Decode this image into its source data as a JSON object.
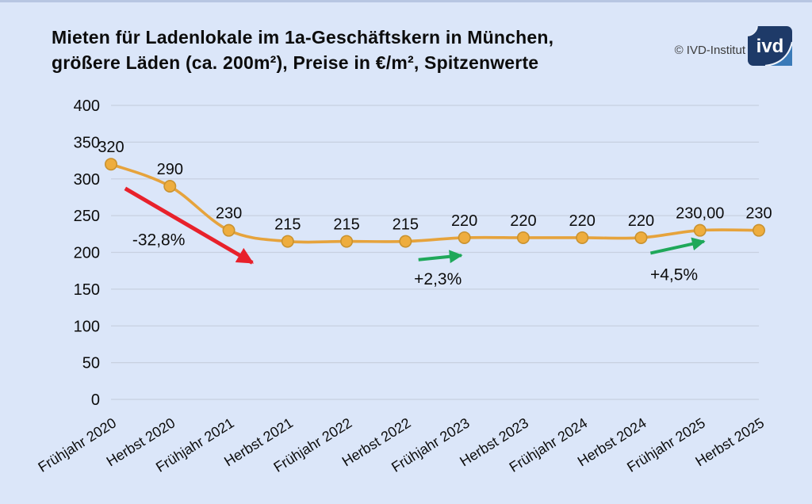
{
  "page": {
    "title_line1": "Mieten für Ladenlokale im 1a-Geschäftskern in München,",
    "title_line2": "größere Läden (ca. 200m²), Preise in €/m², Spitzenwerte",
    "watermark": "© IVD-Institut",
    "logo_text": "ivd"
  },
  "colors": {
    "background": "#dbe6f9",
    "grid": "#c7d0e0",
    "line": "#e6a33c",
    "marker_fill": "#eead3e",
    "marker_stroke": "#c9922f",
    "text": "#0c0c0c",
    "red": "#e8212b",
    "green": "#1fa85a",
    "logo_navy": "#1e3a68",
    "logo_blue": "#3a7ab8"
  },
  "chart_data": {
    "type": "line",
    "title": "Mieten für Ladenlokale im 1a-Geschäftskern in München, größere Läden (ca. 200m²), Preise in €/m², Spitzenwerte",
    "categories": [
      "Frühjahr 2020",
      "Herbst 2020",
      "Frühjahr 2021",
      "Herbst 2021",
      "Frühjahr 2022",
      "Herbst 2022",
      "Frühjahr 2023",
      "Herbst 2023",
      "Frühjahr 2024",
      "Herbst 2024",
      "Frühjahr 2025",
      "Herbst 2025"
    ],
    "values": [
      320,
      290,
      230,
      215,
      215,
      215,
      220,
      220,
      220,
      220,
      230,
      230
    ],
    "point_labels": [
      "320",
      "290",
      "230",
      "215",
      "215",
      "215",
      "220",
      "220",
      "220",
      "220",
      "230,00",
      "230"
    ],
    "xlabel": "",
    "ylabel": "",
    "ylim": [
      0,
      400
    ],
    "yticks": [
      400,
      350,
      300,
      250,
      200,
      150,
      100,
      50,
      0
    ],
    "grid": true,
    "legend": "none",
    "annotations": [
      {
        "text": "-32,8%",
        "color": "#e8212b",
        "stroke_width": 5,
        "arrow_from": [
          0.24,
          287
        ],
        "arrow_to": [
          2.4,
          186
        ],
        "label_at": [
          0.81,
          217
        ]
      },
      {
        "text": "+2,3%",
        "color": "#1fa85a",
        "stroke_width": 4,
        "arrow_from": [
          5.22,
          190
        ],
        "arrow_to": [
          5.95,
          196
        ],
        "label_at": [
          5.55,
          164
        ]
      },
      {
        "text": "+4,5%",
        "color": "#1fa85a",
        "stroke_width": 4,
        "arrow_from": [
          9.16,
          199
        ],
        "arrow_to": [
          10.07,
          215
        ],
        "label_at": [
          9.56,
          170
        ]
      }
    ]
  }
}
